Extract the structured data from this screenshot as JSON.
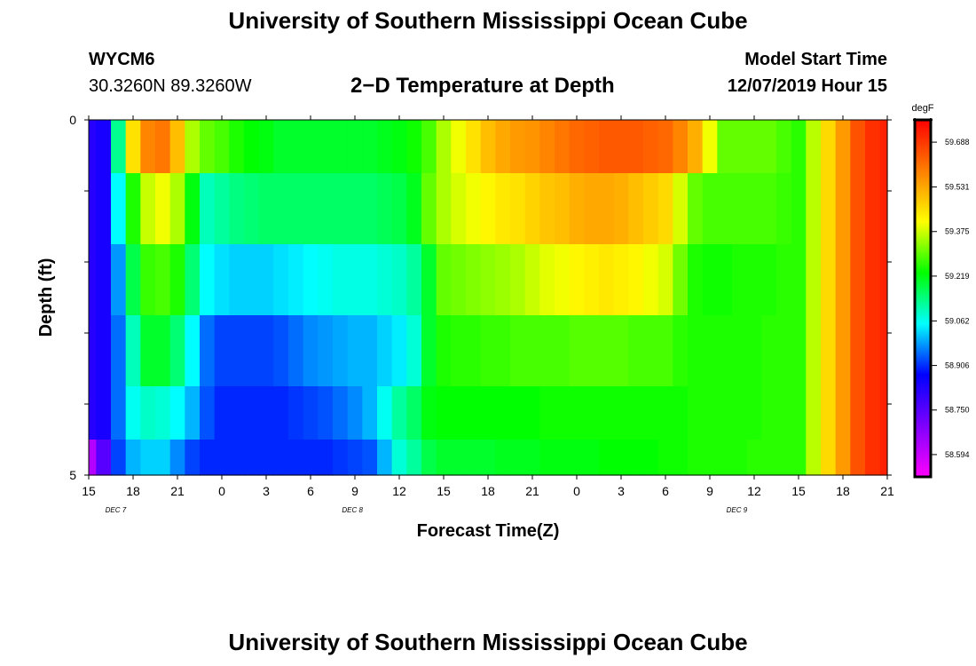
{
  "header": {
    "title": "University of Southern Mississippi Ocean Cube",
    "station_id": "WYCM6",
    "station_coords": "30.3260N 89.3260W",
    "plot_title": "2−D Temperature at Depth",
    "model_start_label": "Model Start Time",
    "model_start_value": "12/07/2019 Hour 15"
  },
  "footer": {
    "title": "University of Southern Mississippi Ocean Cube"
  },
  "chart_data": {
    "type": "heatmap",
    "xlabel": "Forecast Time(Z)",
    "ylabel": "Depth (ft)",
    "x_start": "12/07/2019 15Z",
    "x_step_hours": 1,
    "x_tick_labels": [
      "15",
      "18",
      "21",
      "0",
      "3",
      "6",
      "9",
      "12",
      "15",
      "18",
      "21",
      "0",
      "3",
      "6",
      "9",
      "12",
      "15",
      "18",
      "21"
    ],
    "date_labels": [
      {
        "label": "DEC 7",
        "hour": 1
      },
      {
        "label": "DEC 8",
        "hour": 17
      },
      {
        "label": "DEC 9",
        "hour": 43
      }
    ],
    "y_tick_labels": [
      "0",
      "5"
    ],
    "ylim": [
      0,
      5
    ],
    "y_minor_ticks": 5,
    "depth_levels": [
      0.25,
      1.25,
      2.25,
      3.25,
      4.25,
      4.75
    ],
    "hours": [
      0,
      1,
      2,
      3,
      4,
      5,
      6,
      7,
      8,
      9,
      10,
      11,
      12,
      13,
      14,
      15,
      16,
      17,
      18,
      19,
      20,
      21,
      22,
      23,
      24,
      25,
      26,
      27,
      28,
      29,
      30,
      31,
      32,
      33,
      34,
      35,
      36,
      37,
      38,
      39,
      40,
      41,
      42,
      43,
      44,
      45,
      46,
      47,
      48,
      49,
      50,
      51,
      52,
      53,
      54
    ],
    "values": [
      [
        58.82,
        58.84,
        59.13,
        59.45,
        59.58,
        59.6,
        59.5,
        59.35,
        59.3,
        59.28,
        59.25,
        59.23,
        59.22,
        59.2,
        59.2,
        59.2,
        59.2,
        59.2,
        59.2,
        59.2,
        59.21,
        59.22,
        59.24,
        59.28,
        59.35,
        59.4,
        59.45,
        59.5,
        59.53,
        59.55,
        59.56,
        59.58,
        59.6,
        59.62,
        59.63,
        59.64,
        59.64,
        59.64,
        59.63,
        59.62,
        59.58,
        59.52,
        59.4,
        59.3,
        59.3,
        59.3,
        59.3,
        59.28,
        59.26,
        59.36,
        59.46,
        59.55,
        59.65,
        59.7,
        59.72
      ],
      [
        58.82,
        58.84,
        59.05,
        59.25,
        59.37,
        59.4,
        59.35,
        59.22,
        59.1,
        59.12,
        59.14,
        59.15,
        59.16,
        59.16,
        59.16,
        59.16,
        59.16,
        59.16,
        59.16,
        59.16,
        59.17,
        59.18,
        59.21,
        59.3,
        59.35,
        59.38,
        59.4,
        59.42,
        59.44,
        59.45,
        59.47,
        59.49,
        59.5,
        59.52,
        59.53,
        59.53,
        59.52,
        59.5,
        59.48,
        59.46,
        59.38,
        59.3,
        59.28,
        59.28,
        59.28,
        59.28,
        59.28,
        59.27,
        59.26,
        59.36,
        59.46,
        59.55,
        59.65,
        59.7,
        59.72
      ],
      [
        58.82,
        58.84,
        58.98,
        59.18,
        59.27,
        59.28,
        59.25,
        59.15,
        59.05,
        59.03,
        59.02,
        59.02,
        59.02,
        59.03,
        59.04,
        59.05,
        59.06,
        59.07,
        59.07,
        59.07,
        59.08,
        59.09,
        59.12,
        59.2,
        59.3,
        59.31,
        59.32,
        59.33,
        59.34,
        59.35,
        59.37,
        59.39,
        59.4,
        59.42,
        59.43,
        59.44,
        59.43,
        59.42,
        59.4,
        59.38,
        59.31,
        59.25,
        59.24,
        59.24,
        59.25,
        59.25,
        59.25,
        59.26,
        59.26,
        59.36,
        59.46,
        59.55,
        59.65,
        59.7,
        59.72
      ],
      [
        58.82,
        58.84,
        58.95,
        59.1,
        59.2,
        59.2,
        59.15,
        59.05,
        58.95,
        58.92,
        58.92,
        58.92,
        58.92,
        58.93,
        58.95,
        58.97,
        58.98,
        58.99,
        59.0,
        59.0,
        59.02,
        59.04,
        59.08,
        59.2,
        59.25,
        59.26,
        59.26,
        59.27,
        59.27,
        59.28,
        59.28,
        59.28,
        59.28,
        59.29,
        59.29,
        59.29,
        59.29,
        59.28,
        59.28,
        59.28,
        59.26,
        59.25,
        59.25,
        59.25,
        59.25,
        59.25,
        59.26,
        59.26,
        59.26,
        59.36,
        59.46,
        59.55,
        59.65,
        59.7,
        59.72
      ],
      [
        58.82,
        58.84,
        58.95,
        59.06,
        59.09,
        59.08,
        59.05,
        59.0,
        58.93,
        58.9,
        58.9,
        58.9,
        58.9,
        58.9,
        58.91,
        58.92,
        58.93,
        58.95,
        58.97,
        59.0,
        59.06,
        59.12,
        59.16,
        59.22,
        59.23,
        59.23,
        59.23,
        59.23,
        59.23,
        59.23,
        59.23,
        59.24,
        59.24,
        59.24,
        59.24,
        59.24,
        59.24,
        59.24,
        59.24,
        59.24,
        59.24,
        59.25,
        59.25,
        59.25,
        59.25,
        59.25,
        59.26,
        59.26,
        59.26,
        59.36,
        59.46,
        59.55,
        59.65,
        59.7,
        59.72
      ],
      [
        58.62,
        58.75,
        58.92,
        59.0,
        59.02,
        59.02,
        58.97,
        58.92,
        58.9,
        58.9,
        58.9,
        58.9,
        58.9,
        58.9,
        58.9,
        58.9,
        58.9,
        58.91,
        58.92,
        58.93,
        59.0,
        59.08,
        59.12,
        59.18,
        59.2,
        59.2,
        59.2,
        59.2,
        59.21,
        59.21,
        59.21,
        59.22,
        59.22,
        59.22,
        59.22,
        59.23,
        59.23,
        59.23,
        59.23,
        59.24,
        59.24,
        59.25,
        59.25,
        59.25,
        59.25,
        59.26,
        59.26,
        59.26,
        59.26,
        59.36,
        59.46,
        59.55,
        59.65,
        59.7,
        59.72
      ]
    ],
    "colorbar": {
      "unit": "degF",
      "min": 58.516,
      "max": 59.766,
      "labels": [
        "59.688",
        "59.531",
        "59.375",
        "59.219",
        "59.062",
        "58.906",
        "58.750",
        "58.594"
      ],
      "colors": [
        "#ff00ff",
        "#bf00ff",
        "#7f00ff",
        "#3f00ff",
        "#0000ff",
        "#007fff",
        "#00ffff",
        "#00ff7f",
        "#00ff00",
        "#7fff00",
        "#ffff00",
        "#ffbf00",
        "#ff7f00",
        "#ff3f00",
        "#ff0000"
      ]
    }
  }
}
